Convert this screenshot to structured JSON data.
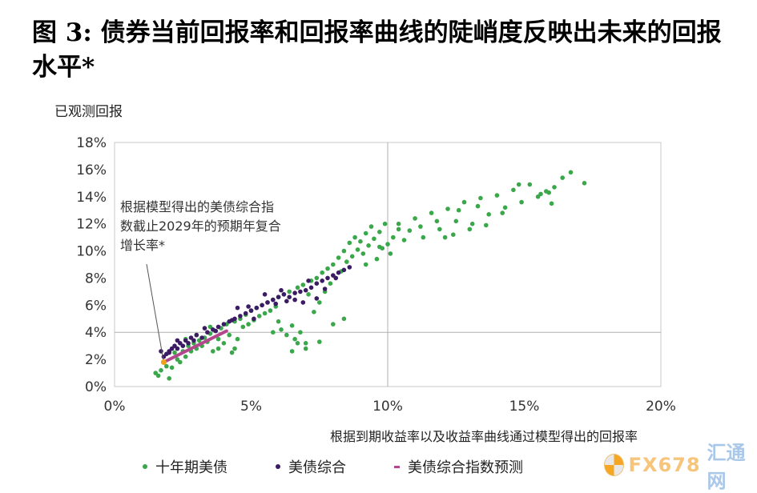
{
  "title": "图 3: 债券当前回报率和回报率曲线的陡峭度反映出未来的回报水平*",
  "watermark": {
    "text": "FX678",
    "text2": "汇通网"
  },
  "chart_data": {
    "type": "scatter",
    "ylabel": "已观测回报",
    "xlabel": "根据到期收益率以及收益率曲线通过模型得出的回报率",
    "xlim": [
      0,
      20
    ],
    "ylim": [
      0,
      18
    ],
    "x_ticks": [
      "0%",
      "5%",
      "10%",
      "15%",
      "20%"
    ],
    "y_ticks": [
      "0%",
      "2%",
      "4%",
      "6%",
      "8%",
      "10%",
      "12%",
      "14%",
      "16%",
      "18%"
    ],
    "grid": "vertical and horizontal lines at 10% x and 4% y",
    "legend_position": "bottom",
    "annotation": {
      "text_lines": [
        "根据模型得出的美债综合指",
        "数截止2029年的预期年复合",
        "增长率*"
      ],
      "point": {
        "x": 1.8,
        "y": 1.8
      }
    },
    "series": [
      {
        "name": "十年期美债",
        "color": "#3aa84a",
        "marker": "dot",
        "points": [
          [
            1.5,
            1.0
          ],
          [
            1.6,
            0.8
          ],
          [
            1.7,
            1.2
          ],
          [
            1.9,
            1.5
          ],
          [
            2.0,
            0.6
          ],
          [
            2.1,
            1.4
          ],
          [
            2.2,
            2.5
          ],
          [
            2.3,
            2.0
          ],
          [
            2.4,
            1.8
          ],
          [
            2.5,
            2.6
          ],
          [
            2.6,
            2.2
          ],
          [
            2.7,
            3.0
          ],
          [
            2.8,
            2.6
          ],
          [
            2.9,
            3.2
          ],
          [
            3.0,
            2.8
          ],
          [
            3.1,
            3.4
          ],
          [
            3.2,
            3.0
          ],
          [
            3.3,
            3.6
          ],
          [
            3.4,
            3.3
          ],
          [
            3.5,
            3.9
          ],
          [
            3.6,
            2.6
          ],
          [
            3.7,
            4.1
          ],
          [
            3.8,
            3.5
          ],
          [
            3.9,
            4.3
          ],
          [
            4.0,
            3.2
          ],
          [
            4.1,
            4.6
          ],
          [
            4.2,
            3.8
          ],
          [
            4.3,
            2.5
          ],
          [
            4.4,
            4.8
          ],
          [
            4.5,
            3.5
          ],
          [
            4.6,
            5.0
          ],
          [
            4.7,
            4.4
          ],
          [
            4.8,
            5.3
          ],
          [
            4.9,
            4.6
          ],
          [
            5.0,
            5.6
          ],
          [
            5.1,
            4.9
          ],
          [
            5.2,
            5.8
          ],
          [
            5.3,
            5.2
          ],
          [
            5.4,
            6.0
          ],
          [
            5.5,
            5.4
          ],
          [
            5.6,
            6.2
          ],
          [
            5.7,
            5.6
          ],
          [
            5.8,
            6.4
          ],
          [
            5.9,
            5.9
          ],
          [
            6.0,
            6.6
          ],
          [
            6.1,
            4.2
          ],
          [
            6.2,
            6.8
          ],
          [
            6.3,
            3.8
          ],
          [
            6.4,
            7.0
          ],
          [
            6.5,
            4.5
          ],
          [
            6.6,
            3.5
          ],
          [
            6.7,
            7.3
          ],
          [
            6.8,
            4.0
          ],
          [
            6.9,
            7.5
          ],
          [
            7.0,
            3.2
          ],
          [
            7.1,
            6.8
          ],
          [
            7.2,
            7.8
          ],
          [
            7.3,
            5.5
          ],
          [
            7.4,
            8.0
          ],
          [
            7.5,
            6.2
          ],
          [
            7.6,
            8.4
          ],
          [
            7.7,
            7.0
          ],
          [
            7.8,
            8.7
          ],
          [
            7.9,
            7.6
          ],
          [
            8.0,
            9.0
          ],
          [
            8.1,
            8.0
          ],
          [
            8.2,
            9.5
          ],
          [
            8.3,
            8.5
          ],
          [
            8.4,
            10.0
          ],
          [
            8.5,
            9.2
          ],
          [
            8.6,
            10.6
          ],
          [
            8.7,
            9.6
          ],
          [
            8.8,
            11.0
          ],
          [
            8.9,
            10.1
          ],
          [
            9.0,
            10.7
          ],
          [
            9.1,
            9.8
          ],
          [
            9.2,
            11.3
          ],
          [
            9.3,
            10.4
          ],
          [
            9.4,
            11.8
          ],
          [
            9.5,
            10.9
          ],
          [
            9.6,
            9.4
          ],
          [
            9.7,
            11.4
          ],
          [
            9.8,
            10.2
          ],
          [
            9.9,
            12.0
          ],
          [
            10.0,
            10.5
          ],
          [
            10.1,
            9.8
          ],
          [
            10.2,
            11.0
          ],
          [
            10.4,
            12.0
          ],
          [
            10.6,
            10.8
          ],
          [
            10.8,
            11.5
          ],
          [
            11.0,
            12.4
          ],
          [
            11.3,
            11.0
          ],
          [
            11.6,
            12.8
          ],
          [
            11.9,
            11.6
          ],
          [
            12.2,
            13.1
          ],
          [
            12.5,
            12.2
          ],
          [
            12.8,
            13.6
          ],
          [
            13.1,
            12.0
          ],
          [
            13.4,
            13.9
          ],
          [
            13.7,
            12.7
          ],
          [
            14.0,
            14.1
          ],
          [
            14.3,
            13.2
          ],
          [
            14.6,
            14.5
          ],
          [
            14.9,
            13.6
          ],
          [
            15.2,
            14.9
          ],
          [
            15.5,
            14.0
          ],
          [
            15.8,
            14.4
          ],
          [
            16.1,
            14.7
          ],
          [
            16.4,
            15.4
          ],
          [
            16.7,
            15.8
          ],
          [
            17.2,
            15.0
          ],
          [
            12.4,
            11.2
          ],
          [
            13.0,
            11.6
          ],
          [
            13.6,
            11.9
          ],
          [
            14.2,
            12.8
          ],
          [
            15.6,
            14.2
          ],
          [
            16.0,
            13.5
          ],
          [
            11.8,
            12.2
          ],
          [
            12.1,
            11.0
          ],
          [
            9.7,
            10.3
          ],
          [
            8.4,
            5.0
          ],
          [
            8.0,
            4.6
          ],
          [
            7.5,
            3.3
          ],
          [
            6.7,
            3.2
          ],
          [
            6.5,
            2.6
          ],
          [
            7.0,
            2.8
          ],
          [
            6.0,
            4.8
          ],
          [
            5.8,
            4.0
          ],
          [
            4.4,
            2.8
          ],
          [
            3.8,
            2.8
          ],
          [
            3.0,
            3.8
          ],
          [
            2.6,
            3.5
          ],
          [
            3.5,
            4.4
          ],
          [
            9.2,
            9.0
          ],
          [
            10.4,
            11.6
          ],
          [
            11.2,
            11.8
          ],
          [
            12.6,
            13.0
          ],
          [
            13.3,
            13.3
          ],
          [
            14.8,
            14.9
          ],
          [
            15.9,
            14.3
          ]
        ]
      },
      {
        "name": "美债综合",
        "color": "#3b1b63",
        "marker": "dot",
        "points": [
          [
            1.8,
            2.2
          ],
          [
            1.9,
            2.4
          ],
          [
            2.0,
            2.6
          ],
          [
            2.1,
            2.8
          ],
          [
            2.2,
            3.0
          ],
          [
            2.3,
            2.8
          ],
          [
            2.4,
            3.2
          ],
          [
            2.5,
            3.0
          ],
          [
            2.6,
            3.4
          ],
          [
            2.7,
            3.2
          ],
          [
            2.8,
            3.6
          ],
          [
            2.9,
            3.4
          ],
          [
            3.0,
            3.8
          ],
          [
            3.2,
            3.6
          ],
          [
            3.4,
            4.0
          ],
          [
            3.6,
            4.2
          ],
          [
            3.8,
            4.4
          ],
          [
            4.0,
            4.6
          ],
          [
            4.2,
            4.8
          ],
          [
            4.4,
            5.0
          ],
          [
            4.6,
            5.2
          ],
          [
            4.8,
            5.4
          ],
          [
            5.0,
            5.6
          ],
          [
            5.2,
            5.8
          ],
          [
            5.4,
            6.0
          ],
          [
            5.6,
            6.2
          ],
          [
            5.8,
            6.4
          ],
          [
            6.0,
            6.6
          ],
          [
            6.2,
            6.8
          ],
          [
            6.4,
            6.6
          ],
          [
            6.6,
            6.9
          ],
          [
            6.8,
            7.0
          ],
          [
            7.0,
            7.1
          ],
          [
            7.2,
            7.3
          ],
          [
            7.4,
            7.6
          ],
          [
            7.6,
            7.8
          ],
          [
            7.8,
            8.0
          ],
          [
            8.0,
            8.2
          ],
          [
            8.2,
            8.4
          ],
          [
            8.4,
            8.6
          ],
          [
            8.6,
            8.8
          ],
          [
            2.0,
            2.5
          ],
          [
            1.7,
            2.6
          ],
          [
            2.3,
            3.4
          ],
          [
            4.5,
            5.8
          ],
          [
            5.1,
            5.0
          ],
          [
            5.9,
            6.1
          ],
          [
            6.3,
            6.3
          ],
          [
            6.9,
            6.2
          ],
          [
            7.4,
            6.5
          ],
          [
            5.5,
            6.8
          ],
          [
            4.9,
            5.9
          ],
          [
            6.1,
            7.1
          ],
          [
            7.1,
            7.8
          ],
          [
            7.7,
            7.2
          ],
          [
            8.1,
            8.0
          ],
          [
            3.7,
            4.1
          ],
          [
            3.3,
            4.3
          ],
          [
            4.3,
            4.9
          ],
          [
            6.6,
            6.4
          ]
        ]
      },
      {
        "name": "美债综合指数预测",
        "color": "#b4478e",
        "marker": "line",
        "points": [
          [
            1.8,
            1.8
          ],
          [
            4.1,
            4.1
          ]
        ]
      }
    ]
  }
}
